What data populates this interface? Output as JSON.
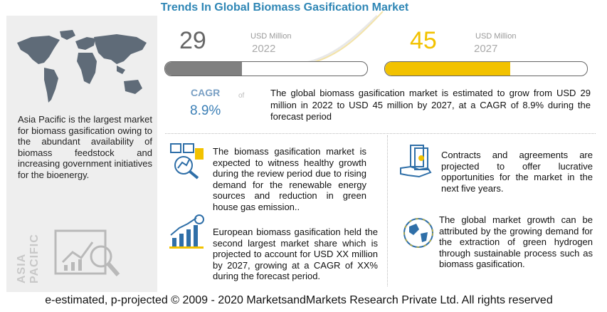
{
  "title": "Trends In Global Biomass Gasification Market",
  "left": {
    "text": "Asia Pacific is the largest market for biomass gasification owing to the abundant availability of biomass feedstock and increasing government initiatives for the bioenergy.",
    "region_label": "ASIA PACIFIC"
  },
  "market": {
    "start": {
      "value": "29",
      "unit": "USD Million",
      "year": "2022",
      "bar_fill": 0.38,
      "color": "#808080"
    },
    "end": {
      "value": "45",
      "unit": "USD Million",
      "year": "2027",
      "bar_fill": 0.62,
      "color": "#f2c200"
    }
  },
  "cagr": {
    "label": "CAGR",
    "of": "of",
    "value": "8.9%"
  },
  "summary": "The global biomass gasification market is estimated to grow from USD 29 million in 2022 to USD 45 million by 2027, at a CAGR of 8.9% during the forecast period",
  "blurbs": [
    {
      "icon": "chart-search-icon",
      "text": "The biomass gasification market is expected to witness healthy growth during the review period due to rising demand for the renewable energy sources and reduction in green house gas emission.."
    },
    {
      "icon": "growth-chart-icon",
      "text": "European biomass gasification held the second largest market share which is projected to account for USD XX million by 2027, growing at a CAGR of XX% during the forecast period."
    },
    {
      "icon": "money-hand-icon",
      "text": "Contracts and agreements are projected to offer lucrative opportunities for the market in the next five years."
    },
    {
      "icon": "globe-icon",
      "text": "The global market growth can be attributed by the growing demand for the extraction of green hydrogen through sustainable process such as biomass gasification."
    }
  ],
  "footer": "e-estimated, p-projected © 2009 - 2020 MarketsandMarkets Research Private Ltd. All rights reserved"
}
